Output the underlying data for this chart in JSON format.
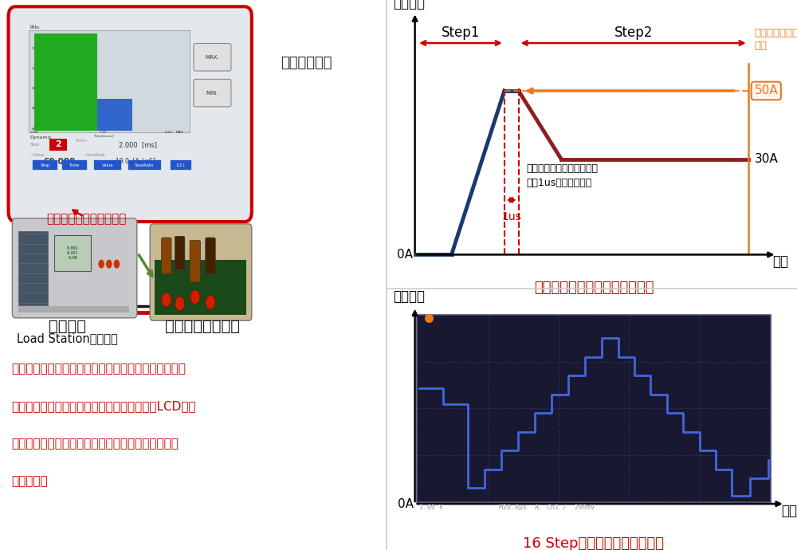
{
  "bg_color": "#ffffff",
  "border_color": "#cccccc",
  "left_panel": {
    "dynamic_mode_label": "ダイナミックモード設定",
    "dynamic_mode_color": "#cc0000",
    "device_label_line1": "電子負荷",
    "device_label_line2": "Load Stationシリーズ",
    "power_supply_label": "スイッチング電源",
    "waveform_label": "負荷電流波形",
    "waveform_label_color": "#222222",
    "description_line1": "ダイナミックモードにおいて、設定時間と設定電流の",
    "description_line2": "関係が分かりやすいように、リアルタイムでLCDが変",
    "description_line3": "化。どんな電流変動となっているか試験前に目視で",
    "description_line4": "確認可能！",
    "description_color": "#cc0000",
    "lcd_bg": "#d0d8e0",
    "lcd_border": "#cc0000",
    "bar1_color": "#22aa22",
    "bar2_color": "#3366cc",
    "btn_bg": "#e8e8e8",
    "btn_border": "#888888",
    "step_box_color": "#cc0000",
    "header_bar_color": "#2255cc",
    "device_bg": "#dddddd",
    "fan_color": "#445566",
    "display_bg": "#b8ccb8",
    "psu_bg": "#c8b890",
    "wire_red": "#cc0000",
    "wire_black": "#111111",
    "arrow_green": "#558833",
    "arrow_red": "#cc0000"
  },
  "top_right": {
    "title": "オーバーシュート電流再現方法",
    "title_color": "#cc0000",
    "ylabel": "負荷電流",
    "xlabel": "時間",
    "step1_label": "Step1",
    "step2_label": "Step2",
    "overshoot_label_line1": "オーバーシュート",
    "overshoot_label_line2": "電流",
    "overshoot_color": "#e87722",
    "overshoot_value": "50A",
    "steady_label": "30A",
    "time_label": "1us",
    "time_color": "#cc0000",
    "overshoot_time_line1": "オーバーシュート電流時間",
    "overshoot_time_line2": "最小1us～再現が可能",
    "zero_label": "0A",
    "waveform_blue": "#1a3a6b",
    "waveform_red": "#8b2020",
    "arrow_red": "#cc0000",
    "dashed_red": "#cc0000"
  },
  "bottom_right": {
    "title": "16 Stepの電流変動パターン例",
    "title_color": "#cc0000",
    "ylabel": "負荷電流",
    "xlabel": "時間",
    "zero_label": "0A",
    "scope_text": "1.00 V              M20.0μs  A  Ch1 /  200mV",
    "scope_bg": "#181830",
    "scope_border": "#555577",
    "grid_color": "#3a3a88",
    "waveform_color": "#4466dd",
    "dot_color": "#e87722"
  }
}
